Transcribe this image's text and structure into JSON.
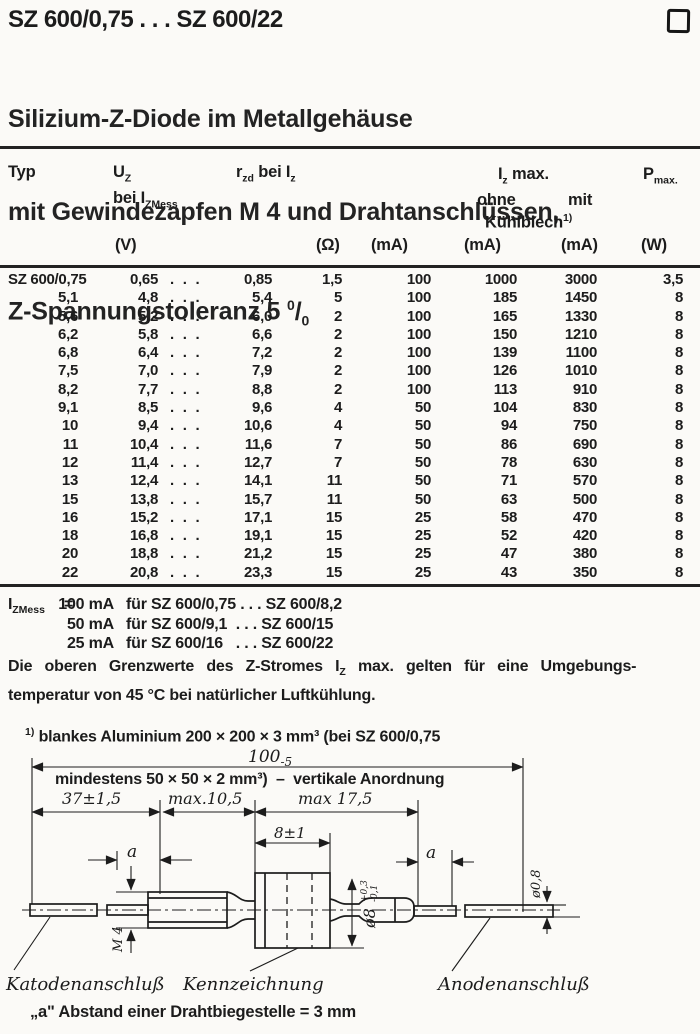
{
  "doc": {
    "title": "SZ 600/0,75 . . . SZ 600/22",
    "subtitle_line1": "Silizium-Z-Diode im Metallgehäuse",
    "subtitle_line2": "mit Gewindezapfen M 4 und Drahtanschlüssen,",
    "tolerance": {
      "prefix": "Z-Spannungstoleranz 5 ",
      "sup": "0",
      "slash": "/",
      "sub": "0"
    }
  },
  "table": {
    "headers": {
      "typ": "Typ",
      "uz_base": "U",
      "uz_sub": "Z",
      "uz_line2_pre": "bei I",
      "uz_line2_sub": "ZMess",
      "rzd_base": "r",
      "rzd_sub": "zd",
      "rzd_mid": " bei I",
      "rzd_mid_sub": "z",
      "iz_base": "I",
      "iz_sub": "z",
      "iz_post": " max.",
      "ohne": "ohne",
      "mit": "mit",
      "kuehl": "Kühlblech",
      "kuehl_sup": "1)",
      "p_base": "P",
      "p_sub": "max."
    },
    "units": {
      "v": "(V)",
      "ohm": "(Ω)",
      "ma1": "(mA)",
      "ma2": "(mA)",
      "ma3": "(mA)",
      "w": "(W)"
    },
    "dots": ". . .",
    "rows": [
      {
        "typ": "SZ 600/0,75",
        "umin": "0,65",
        "umax": "0,85",
        "rzd": "1,5",
        "izbei": "100",
        "ohne": "1000",
        "mit": "3000",
        "p": "3,5"
      },
      {
        "typ": "5,1",
        "umin": "4,8",
        "umax": "5,4",
        "rzd": "5",
        "izbei": "100",
        "ohne": "185",
        "mit": "1450",
        "p": "8"
      },
      {
        "typ": "5,6",
        "umin": "5,2",
        "umax": "6,0",
        "rzd": "2",
        "izbei": "100",
        "ohne": "165",
        "mit": "1330",
        "p": "8"
      },
      {
        "typ": "6,2",
        "umin": "5,8",
        "umax": "6,6",
        "rzd": "2",
        "izbei": "100",
        "ohne": "150",
        "mit": "1210",
        "p": "8"
      },
      {
        "typ": "6,8",
        "umin": "6,4",
        "umax": "7,2",
        "rzd": "2",
        "izbei": "100",
        "ohne": "139",
        "mit": "1100",
        "p": "8"
      },
      {
        "typ": "7,5",
        "umin": "7,0",
        "umax": "7,9",
        "rzd": "2",
        "izbei": "100",
        "ohne": "126",
        "mit": "1010",
        "p": "8"
      },
      {
        "typ": "8,2",
        "umin": "7,7",
        "umax": "8,8",
        "rzd": "2",
        "izbei": "100",
        "ohne": "113",
        "mit": "910",
        "p": "8"
      },
      {
        "typ": "9,1",
        "umin": "8,5",
        "umax": "9,6",
        "rzd": "4",
        "izbei": "50",
        "ohne": "104",
        "mit": "830",
        "p": "8"
      },
      {
        "typ": "10",
        "umin": "9,4",
        "umax": "10,6",
        "rzd": "4",
        "izbei": "50",
        "ohne": "94",
        "mit": "750",
        "p": "8"
      },
      {
        "typ": "11",
        "umin": "10,4",
        "umax": "11,6",
        "rzd": "7",
        "izbei": "50",
        "ohne": "86",
        "mit": "690",
        "p": "8"
      },
      {
        "typ": "12",
        "umin": "11,4",
        "umax": "12,7",
        "rzd": "7",
        "izbei": "50",
        "ohne": "78",
        "mit": "630",
        "p": "8"
      },
      {
        "typ": "13",
        "umin": "12,4",
        "umax": "14,1",
        "rzd": "11",
        "izbei": "50",
        "ohne": "71",
        "mit": "570",
        "p": "8"
      },
      {
        "typ": "15",
        "umin": "13,8",
        "umax": "15,7",
        "rzd": "11",
        "izbei": "50",
        "ohne": "63",
        "mit": "500",
        "p": "8"
      },
      {
        "typ": "16",
        "umin": "15,2",
        "umax": "17,1",
        "rzd": "15",
        "izbei": "25",
        "ohne": "58",
        "mit": "470",
        "p": "8"
      },
      {
        "typ": "18",
        "umin": "16,8",
        "umax": "19,1",
        "rzd": "15",
        "izbei": "25",
        "ohne": "52",
        "mit": "420",
        "p": "8"
      },
      {
        "typ": "20",
        "umin": "18,8",
        "umax": "21,2",
        "rzd": "15",
        "izbei": "25",
        "ohne": "47",
        "mit": "380",
        "p": "8"
      },
      {
        "typ": "22",
        "umin": "20,8",
        "umax": "23,3",
        "rzd": "15",
        "izbei": "25",
        "ohne": "43",
        "mit": "350",
        "p": "8"
      }
    ]
  },
  "notes": {
    "izmess": {
      "base": "I",
      "sub": "ZMess",
      "eq": "=",
      "lines": [
        {
          "amount": "100 mA",
          "rest": "für SZ 600/0,75 . . . SZ 600/8,2"
        },
        {
          "amount": "50 mA",
          "rest": "für SZ 600/9,1  . . . SZ 600/15"
        },
        {
          "amount": "25 mA",
          "rest": "für SZ 600/16   . . . SZ 600/22"
        }
      ]
    },
    "para": {
      "pre": "Die oberen Grenzwerte des Z-Stromes I",
      "sub": "Z",
      "post": " max. gelten für eine Umgebungs-",
      "line2": "temperatur von 45 °C bei natürlicher Luftkühlung."
    },
    "fn1": {
      "sup": "1)",
      "line1": " blankes Aluminium 200 × 200 × 3 mm³ (bei SZ 600/0,75",
      "line2": "mindestens 50 × 50 × 2 mm³)  –  vertikale Anordnung"
    },
    "bottom": "„a\" Abstand einer Drahtbiegestelle = 3 mm"
  },
  "drawing": {
    "dims": {
      "overall": "100",
      "overall_tol": "-5",
      "left": "37±1,5",
      "mid": "max.10,5",
      "right": "max 17,5",
      "body": "8±1",
      "a1": "a",
      "a2": "a",
      "thread": "M 4",
      "dia_body": "ø8",
      "dia_tol_plus": "+0,3",
      "dia_tol_minus": "-0,1",
      "dia_wire": "ø0,8"
    },
    "labels": {
      "cathode": "Katodenanschluß",
      "marking": "Kennzeichnung",
      "anode": "Anodenanschluß"
    }
  },
  "colors": {
    "ink": "#1c1c1c",
    "paper": "#fbfaf7"
  }
}
